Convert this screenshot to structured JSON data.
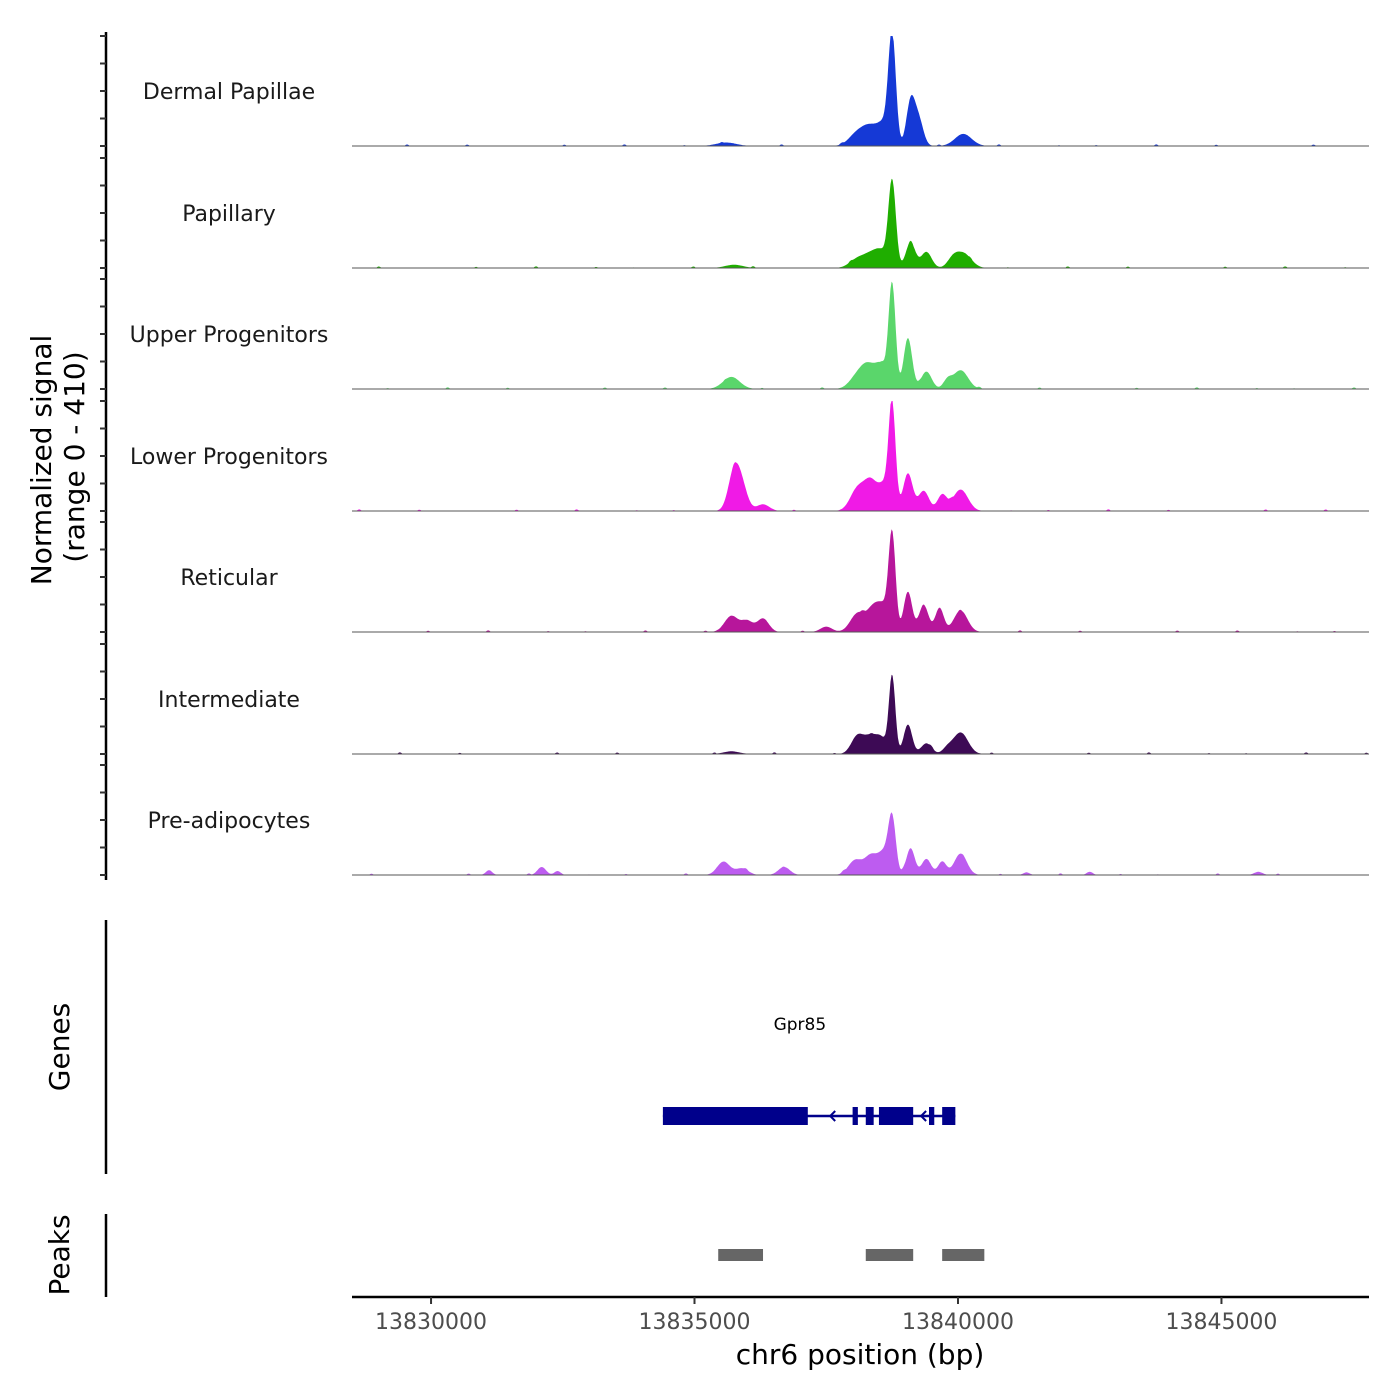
{
  "chart_data": {
    "type": "area",
    "title": "",
    "ylabel_line1": "Normalized signal",
    "ylabel_line2": "(range 0 - 410)",
    "yrange": [
      0,
      410
    ],
    "xlabel": "chr6 position (bp)",
    "xlim": [
      13828500,
      13847800
    ],
    "xticks": [
      13830000,
      13835000,
      13840000,
      13845000
    ],
    "tracks": [
      {
        "name": "Dermal Papillae",
        "color": "#1539d6",
        "peaks": [
          [
            13835600,
            13,
            190
          ],
          [
            13838100,
            50,
            160
          ],
          [
            13838350,
            60,
            140
          ],
          [
            13838600,
            75,
            120
          ],
          [
            13838750,
            400,
            70
          ],
          [
            13839100,
            160,
            80
          ],
          [
            13839250,
            100,
            90
          ],
          [
            13840100,
            45,
            160
          ]
        ]
      },
      {
        "name": "Papillary",
        "color": "#1fae00",
        "peaks": [
          [
            13835750,
            12,
            170
          ],
          [
            13838100,
            35,
            150
          ],
          [
            13838350,
            42,
            130
          ],
          [
            13838550,
            55,
            120
          ],
          [
            13838750,
            320,
            70
          ],
          [
            13839100,
            95,
            90
          ],
          [
            13839400,
            60,
            100
          ],
          [
            13839900,
            28,
            100
          ],
          [
            13840100,
            55,
            150
          ]
        ]
      },
      {
        "name": "Upper Progenitors",
        "color": "#5ad66b",
        "peaks": [
          [
            13835700,
            45,
            160
          ],
          [
            13838100,
            50,
            150
          ],
          [
            13838300,
            70,
            130
          ],
          [
            13838550,
            85,
            120
          ],
          [
            13838750,
            380,
            65
          ],
          [
            13839050,
            190,
            80
          ],
          [
            13839400,
            65,
            100
          ],
          [
            13839800,
            30,
            80
          ],
          [
            13840050,
            70,
            140
          ]
        ]
      },
      {
        "name": "Lower Progenitors",
        "color": "#f01ae6",
        "peaks": [
          [
            13835750,
            140,
            110
          ],
          [
            13835900,
            80,
            110
          ],
          [
            13836300,
            25,
            120
          ],
          [
            13838100,
            85,
            140
          ],
          [
            13838350,
            100,
            120
          ],
          [
            13838600,
            90,
            110
          ],
          [
            13838750,
            380,
            65
          ],
          [
            13839050,
            140,
            90
          ],
          [
            13839350,
            75,
            100
          ],
          [
            13839700,
            60,
            90
          ],
          [
            13840050,
            80,
            140
          ]
        ]
      },
      {
        "name": "Reticular",
        "color": "#b7169b",
        "peaks": [
          [
            13835700,
            60,
            130
          ],
          [
            13836000,
            40,
            110
          ],
          [
            13836300,
            50,
            110
          ],
          [
            13837500,
            20,
            110
          ],
          [
            13838100,
            70,
            140
          ],
          [
            13838400,
            85,
            120
          ],
          [
            13838600,
            80,
            110
          ],
          [
            13838750,
            350,
            65
          ],
          [
            13839050,
            150,
            80
          ],
          [
            13839350,
            100,
            90
          ],
          [
            13839650,
            90,
            80
          ],
          [
            13840050,
            80,
            130
          ]
        ]
      },
      {
        "name": "Intermediate",
        "color": "#3d0a55",
        "peaks": [
          [
            13835700,
            10,
            150
          ],
          [
            13838100,
            70,
            120
          ],
          [
            13838350,
            60,
            110
          ],
          [
            13838550,
            55,
            100
          ],
          [
            13838750,
            290,
            60
          ],
          [
            13839050,
            110,
            80
          ],
          [
            13839400,
            40,
            100
          ],
          [
            13839800,
            20,
            90
          ],
          [
            13840050,
            80,
            140
          ]
        ]
      },
      {
        "name": "Pre-adipocytes",
        "color": "#bd5cf0",
        "peaks": [
          [
            13831100,
            18,
            60
          ],
          [
            13832100,
            30,
            80
          ],
          [
            13832400,
            15,
            60
          ],
          [
            13835550,
            50,
            120
          ],
          [
            13835900,
            25,
            120
          ],
          [
            13836700,
            30,
            110
          ],
          [
            13838050,
            55,
            130
          ],
          [
            13838350,
            70,
            120
          ],
          [
            13838600,
            80,
            110
          ],
          [
            13838750,
            200,
            70
          ],
          [
            13839100,
            100,
            80
          ],
          [
            13839400,
            60,
            90
          ],
          [
            13839700,
            50,
            80
          ],
          [
            13840050,
            80,
            120
          ],
          [
            13841300,
            10,
            60
          ],
          [
            13842500,
            12,
            60
          ],
          [
            13845700,
            12,
            80
          ]
        ]
      }
    ],
    "genes": {
      "title": "Genes",
      "label": "Gpr85",
      "label_position": 13837000,
      "start": 13834400,
      "end": 13839950,
      "strand": "-",
      "color": "#00008b",
      "exons": [
        [
          13834400,
          13837150
        ],
        [
          13838000,
          13838100
        ],
        [
          13838250,
          13838400
        ],
        [
          13838500,
          13839150
        ],
        [
          13839450,
          13839550
        ],
        [
          13839700,
          13839950
        ]
      ]
    },
    "peaks_track": {
      "title": "Peaks",
      "color": "#666666",
      "regions": [
        [
          13835450,
          13836300
        ],
        [
          13838250,
          13839150
        ],
        [
          13839700,
          13840500
        ]
      ]
    }
  }
}
